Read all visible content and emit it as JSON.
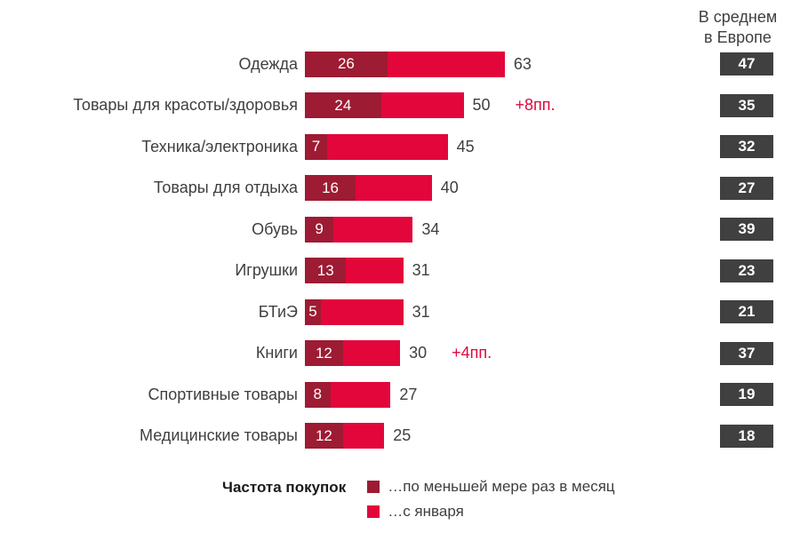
{
  "header": {
    "europe_label": "В среднем\nв Европе"
  },
  "legend": {
    "title": "Частота покупок",
    "items": [
      {
        "label": "…по меньшей мере раз в месяц",
        "color": "#9d1b33"
      },
      {
        "label": "…с января",
        "color": "#e2063b"
      }
    ]
  },
  "chart_data": {
    "type": "bar",
    "orientation": "horizontal",
    "title": "",
    "xlabel": "",
    "ylabel": "",
    "xlim": [
      0,
      70
    ],
    "grid": false,
    "legend_position": "bottom",
    "categories": [
      "Одежда",
      "Товары для красоты/здоровья",
      "Техника/электроника",
      "Товары для отдыха",
      "Обувь",
      "Игрушки",
      "БТиЭ",
      "Книги",
      "Спортивные товары",
      "Медицинские товары"
    ],
    "series": [
      {
        "name": "…по меньшей мере раз в месяц",
        "values": [
          26,
          24,
          7,
          16,
          9,
          13,
          5,
          12,
          8,
          12
        ]
      },
      {
        "name": "…с января",
        "values": [
          63,
          50,
          45,
          40,
          34,
          31,
          31,
          30,
          27,
          25
        ]
      }
    ],
    "europe_average": {
      "label": "В среднем в Европе",
      "values": [
        47,
        35,
        32,
        27,
        39,
        23,
        21,
        37,
        19,
        18
      ]
    },
    "annotations": [
      {
        "row_index": 1,
        "category": "Товары для красоты/здоровья",
        "text": "+8пп."
      },
      {
        "row_index": 7,
        "category": "Книги",
        "text": "+4пп."
      }
    ],
    "colors": {
      "monthly": "#9d1b33",
      "since_january": "#e2063b",
      "europe_box": "#404040",
      "annotation": "#e2063b"
    }
  }
}
